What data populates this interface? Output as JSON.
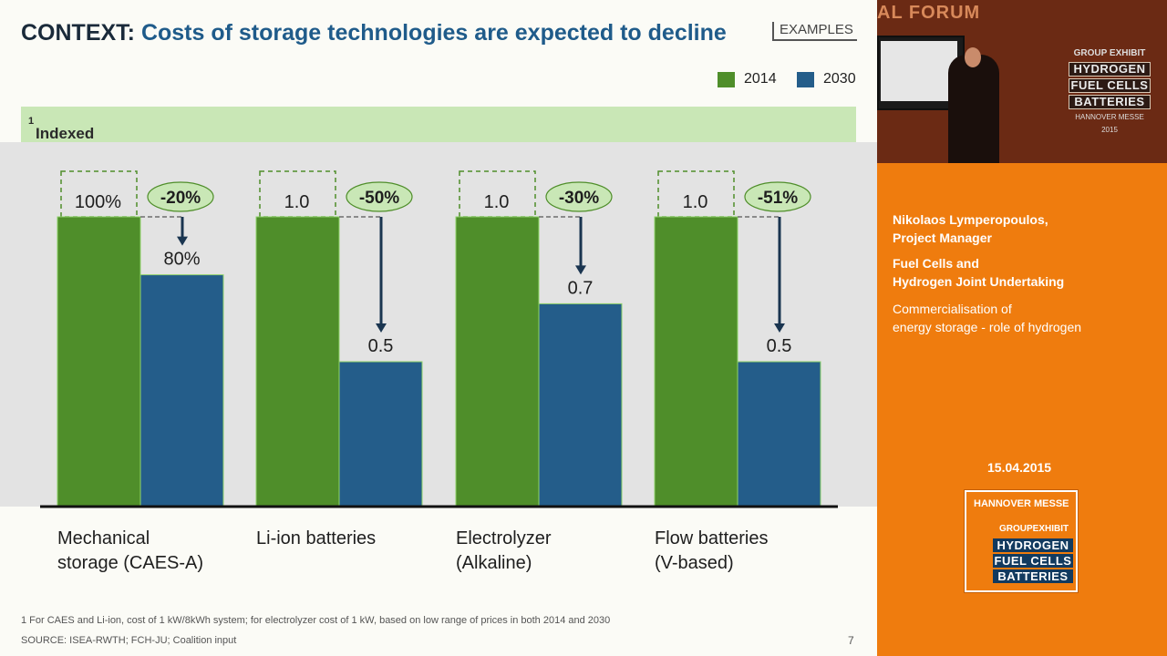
{
  "slide": {
    "title_prefix": "CONTEXT:",
    "title_main": "Costs of storage technologies are expected to decline",
    "tag": "EXAMPLES",
    "subtitle": "Indexed storage costs",
    "subtitle_sup": "1",
    "footnote": "1 For CAES and Li-ion, cost of 1 kW/8kWh system; for electrolyzer cost of 1 kW, based on low range of prices in both 2014 and 2030",
    "source": "SOURCE: ISEA-RWTH; FCH-JU; Coalition input",
    "page_number": "7"
  },
  "chart_data": {
    "type": "bar",
    "series": [
      {
        "name": "2014",
        "color": "#4f8e2a",
        "values": [
          1.0,
          1.0,
          1.0,
          1.0
        ]
      },
      {
        "name": "2030",
        "color": "#245d8a",
        "values": [
          0.8,
          0.5,
          0.7,
          0.5
        ]
      }
    ],
    "groups": [
      {
        "line1": "Mechanical",
        "line2": "storage (CAES-A)",
        "label_2014": "100%",
        "label_2030": "80%",
        "change": "-20%"
      },
      {
        "line1": "Li-ion batteries",
        "line2": "",
        "label_2014": "1.0",
        "label_2030": "0.5",
        "change": "-50%"
      },
      {
        "line1": "Electrolyzer",
        "line2": "(Alkaline)",
        "label_2014": "1.0",
        "label_2030": "0.7",
        "change": "-30%"
      },
      {
        "line1": "Flow batteries",
        "line2": "(V-based)",
        "label_2014": "1.0",
        "label_2030": "0.5",
        "change": "-51%"
      }
    ],
    "ylim": [
      0,
      1.0
    ],
    "colors": {
      "green": "#4f8e2a",
      "blue": "#245d8a",
      "bubble": "#c9e7b6"
    }
  },
  "sidebar": {
    "video": {
      "banner": "AL FORUM",
      "exhibit_label": "GROUP EXHIBIT",
      "lines": [
        "HYDROGEN",
        "FUEL CELLS",
        "BATTERIES"
      ],
      "messe": "HANNOVER MESSE 2015"
    },
    "speaker_name": "Nikolaos Lymperopoulos,",
    "speaker_role": "Project Manager",
    "org_line1": "Fuel Cells and",
    "org_line2": "Hydrogen Joint Undertaking",
    "talk_line1": "Commercialisation of",
    "talk_line2": "energy storage - role of hydrogen",
    "date": "15.04.2015",
    "logo": {
      "messe": "HANNOVER MESSE",
      "exhibit": "GROUPEXHIBIT",
      "lines": [
        "HYDROGEN",
        "FUEL CELLS",
        "BATTERIES"
      ]
    }
  }
}
